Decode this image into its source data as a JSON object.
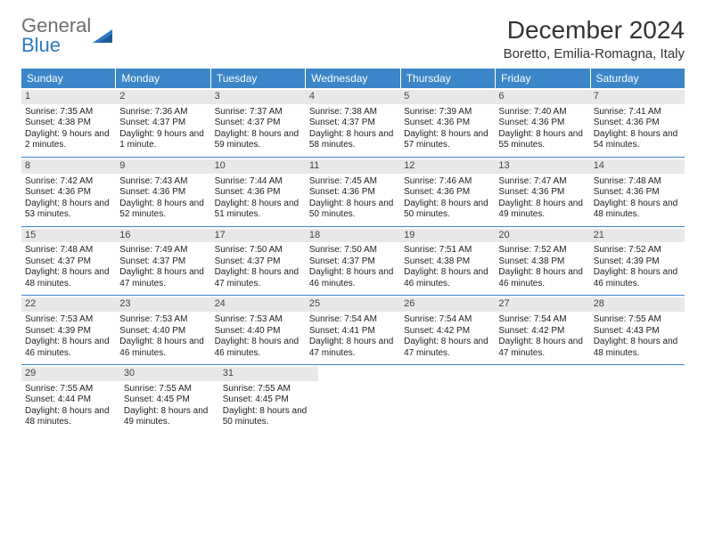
{
  "logo": {
    "line1": "General",
    "line2": "Blue",
    "colors": {
      "line1": "#6e6e6e",
      "line2": "#2f78c2"
    }
  },
  "header": {
    "title": "December 2024",
    "location": "Boretto, Emilia-Romagna, Italy"
  },
  "calendar": {
    "dow_bg": "#3b86c8",
    "dow_fg": "#ffffff",
    "daynum_bg": "#e8e8e8",
    "border_color": "#3b86c8",
    "days_of_week": [
      "Sunday",
      "Monday",
      "Tuesday",
      "Wednesday",
      "Thursday",
      "Friday",
      "Saturday"
    ],
    "weeks": [
      [
        {
          "n": "1",
          "sunrise": "7:35 AM",
          "sunset": "4:38 PM",
          "daylight": "9 hours and 2 minutes."
        },
        {
          "n": "2",
          "sunrise": "7:36 AM",
          "sunset": "4:37 PM",
          "daylight": "9 hours and 1 minute."
        },
        {
          "n": "3",
          "sunrise": "7:37 AM",
          "sunset": "4:37 PM",
          "daylight": "8 hours and 59 minutes."
        },
        {
          "n": "4",
          "sunrise": "7:38 AM",
          "sunset": "4:37 PM",
          "daylight": "8 hours and 58 minutes."
        },
        {
          "n": "5",
          "sunrise": "7:39 AM",
          "sunset": "4:36 PM",
          "daylight": "8 hours and 57 minutes."
        },
        {
          "n": "6",
          "sunrise": "7:40 AM",
          "sunset": "4:36 PM",
          "daylight": "8 hours and 55 minutes."
        },
        {
          "n": "7",
          "sunrise": "7:41 AM",
          "sunset": "4:36 PM",
          "daylight": "8 hours and 54 minutes."
        }
      ],
      [
        {
          "n": "8",
          "sunrise": "7:42 AM",
          "sunset": "4:36 PM",
          "daylight": "8 hours and 53 minutes."
        },
        {
          "n": "9",
          "sunrise": "7:43 AM",
          "sunset": "4:36 PM",
          "daylight": "8 hours and 52 minutes."
        },
        {
          "n": "10",
          "sunrise": "7:44 AM",
          "sunset": "4:36 PM",
          "daylight": "8 hours and 51 minutes."
        },
        {
          "n": "11",
          "sunrise": "7:45 AM",
          "sunset": "4:36 PM",
          "daylight": "8 hours and 50 minutes."
        },
        {
          "n": "12",
          "sunrise": "7:46 AM",
          "sunset": "4:36 PM",
          "daylight": "8 hours and 50 minutes."
        },
        {
          "n": "13",
          "sunrise": "7:47 AM",
          "sunset": "4:36 PM",
          "daylight": "8 hours and 49 minutes."
        },
        {
          "n": "14",
          "sunrise": "7:48 AM",
          "sunset": "4:36 PM",
          "daylight": "8 hours and 48 minutes."
        }
      ],
      [
        {
          "n": "15",
          "sunrise": "7:48 AM",
          "sunset": "4:37 PM",
          "daylight": "8 hours and 48 minutes."
        },
        {
          "n": "16",
          "sunrise": "7:49 AM",
          "sunset": "4:37 PM",
          "daylight": "8 hours and 47 minutes."
        },
        {
          "n": "17",
          "sunrise": "7:50 AM",
          "sunset": "4:37 PM",
          "daylight": "8 hours and 47 minutes."
        },
        {
          "n": "18",
          "sunrise": "7:50 AM",
          "sunset": "4:37 PM",
          "daylight": "8 hours and 46 minutes."
        },
        {
          "n": "19",
          "sunrise": "7:51 AM",
          "sunset": "4:38 PM",
          "daylight": "8 hours and 46 minutes."
        },
        {
          "n": "20",
          "sunrise": "7:52 AM",
          "sunset": "4:38 PM",
          "daylight": "8 hours and 46 minutes."
        },
        {
          "n": "21",
          "sunrise": "7:52 AM",
          "sunset": "4:39 PM",
          "daylight": "8 hours and 46 minutes."
        }
      ],
      [
        {
          "n": "22",
          "sunrise": "7:53 AM",
          "sunset": "4:39 PM",
          "daylight": "8 hours and 46 minutes."
        },
        {
          "n": "23",
          "sunrise": "7:53 AM",
          "sunset": "4:40 PM",
          "daylight": "8 hours and 46 minutes."
        },
        {
          "n": "24",
          "sunrise": "7:53 AM",
          "sunset": "4:40 PM",
          "daylight": "8 hours and 46 minutes."
        },
        {
          "n": "25",
          "sunrise": "7:54 AM",
          "sunset": "4:41 PM",
          "daylight": "8 hours and 47 minutes."
        },
        {
          "n": "26",
          "sunrise": "7:54 AM",
          "sunset": "4:42 PM",
          "daylight": "8 hours and 47 minutes."
        },
        {
          "n": "27",
          "sunrise": "7:54 AM",
          "sunset": "4:42 PM",
          "daylight": "8 hours and 47 minutes."
        },
        {
          "n": "28",
          "sunrise": "7:55 AM",
          "sunset": "4:43 PM",
          "daylight": "8 hours and 48 minutes."
        }
      ],
      [
        {
          "n": "29",
          "sunrise": "7:55 AM",
          "sunset": "4:44 PM",
          "daylight": "8 hours and 48 minutes."
        },
        {
          "n": "30",
          "sunrise": "7:55 AM",
          "sunset": "4:45 PM",
          "daylight": "8 hours and 49 minutes."
        },
        {
          "n": "31",
          "sunrise": "7:55 AM",
          "sunset": "4:45 PM",
          "daylight": "8 hours and 50 minutes."
        },
        null,
        null,
        null,
        null
      ]
    ],
    "labels": {
      "sunrise_prefix": "Sunrise: ",
      "sunset_prefix": "Sunset: ",
      "daylight_prefix": "Daylight: "
    }
  }
}
